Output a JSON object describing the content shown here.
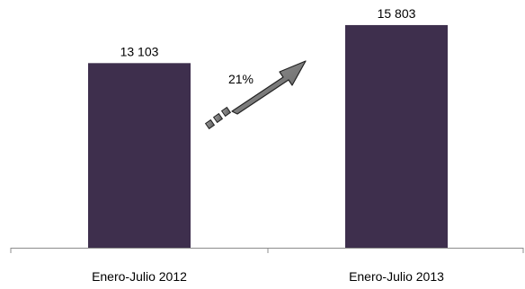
{
  "chart_data": {
    "type": "bar",
    "categories": [
      "Enero-Julio 2012",
      "Enero-Julio 2013"
    ],
    "values": [
      13103,
      15803
    ],
    "value_labels": [
      "13 103",
      "15 803"
    ],
    "annotation": "21%",
    "ylim": [
      0,
      16500
    ],
    "grid": false,
    "bar_color": "#3e2f4d",
    "arrow_color": "#707070"
  }
}
